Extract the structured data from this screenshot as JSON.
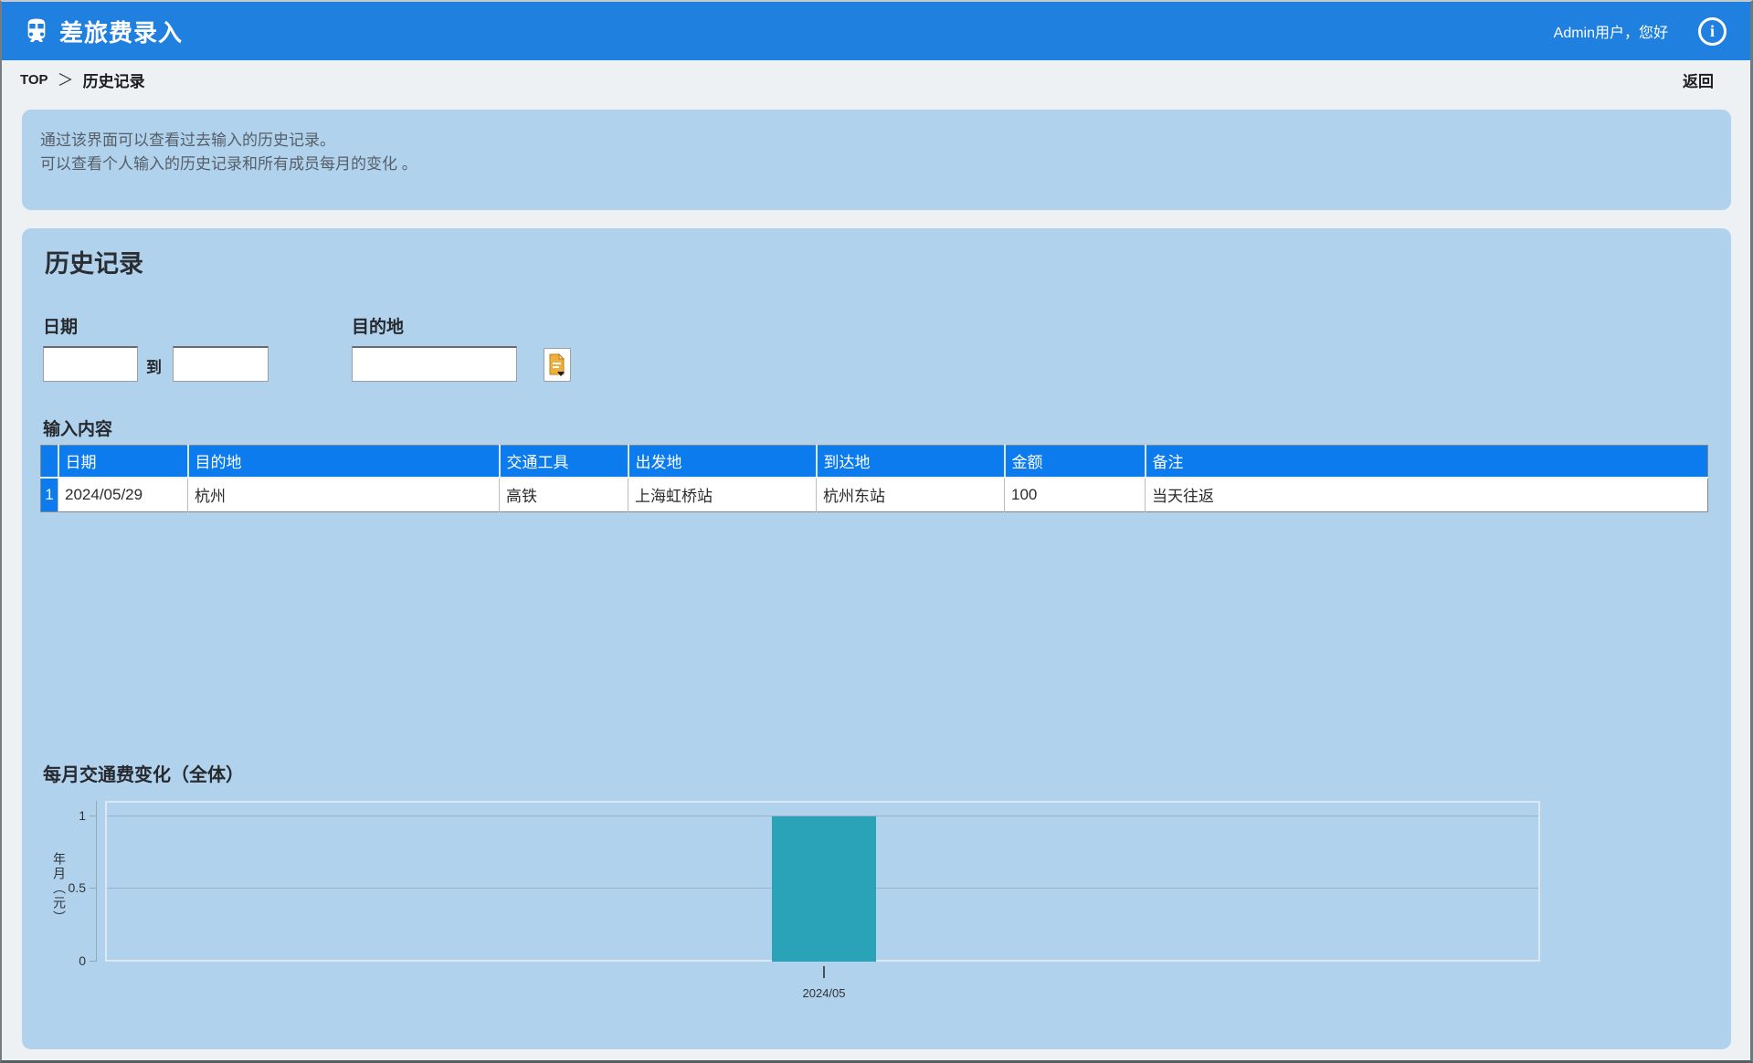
{
  "header": {
    "app_title": "差旅费录入",
    "user_greeting": "Admin用户，您好",
    "info_icon_glyph": "i",
    "accent_color": "#2080e0"
  },
  "breadcrumb": {
    "root": "TOP",
    "separator": "＞",
    "current": "历史记录",
    "back_label": "返回"
  },
  "info_box": {
    "line1": "通过该界面可以查看过去输入的历史记录。",
    "line2": "可以查看个人输入的历史记录和所有成员每月的变化 。"
  },
  "panel": {
    "title": "历史记录",
    "filters": {
      "date_label": "日期",
      "date_from_value": "",
      "date_to_value": "",
      "range_separator": "到",
      "destination_label": "目的地",
      "destination_value": "",
      "picker_icon": "document-picker"
    },
    "table": {
      "caption": "输入内容",
      "columns": [
        "日期",
        "目的地",
        "交通工具",
        "出发地",
        "到达地",
        "金额",
        "备注"
      ],
      "rows": [
        {
          "index": "1",
          "date": "2024/05/29",
          "destination": "杭州",
          "transport": "高铁",
          "departure": "上海虹桥站",
          "arrival": "杭州东站",
          "amount": "100",
          "note": "当天往返"
        }
      ]
    }
  },
  "chart_data": {
    "type": "bar",
    "title": "每月交通费变化（全体）",
    "categories": [
      "2024/05"
    ],
    "values": [
      1
    ],
    "ylabel": "年月（元）",
    "yticks": [
      "1",
      "0.5",
      "0"
    ],
    "ylim": [
      0,
      1.1
    ],
    "grid": true,
    "legend": "none",
    "bar_color": "#2aa2b8"
  },
  "colors": {
    "header_blue": "#2080e0",
    "card_blue": "#b1d2ec",
    "table_header_blue": "#0b7bee",
    "bar_teal": "#2aa2b8",
    "page_bg": "#edf1f4"
  }
}
